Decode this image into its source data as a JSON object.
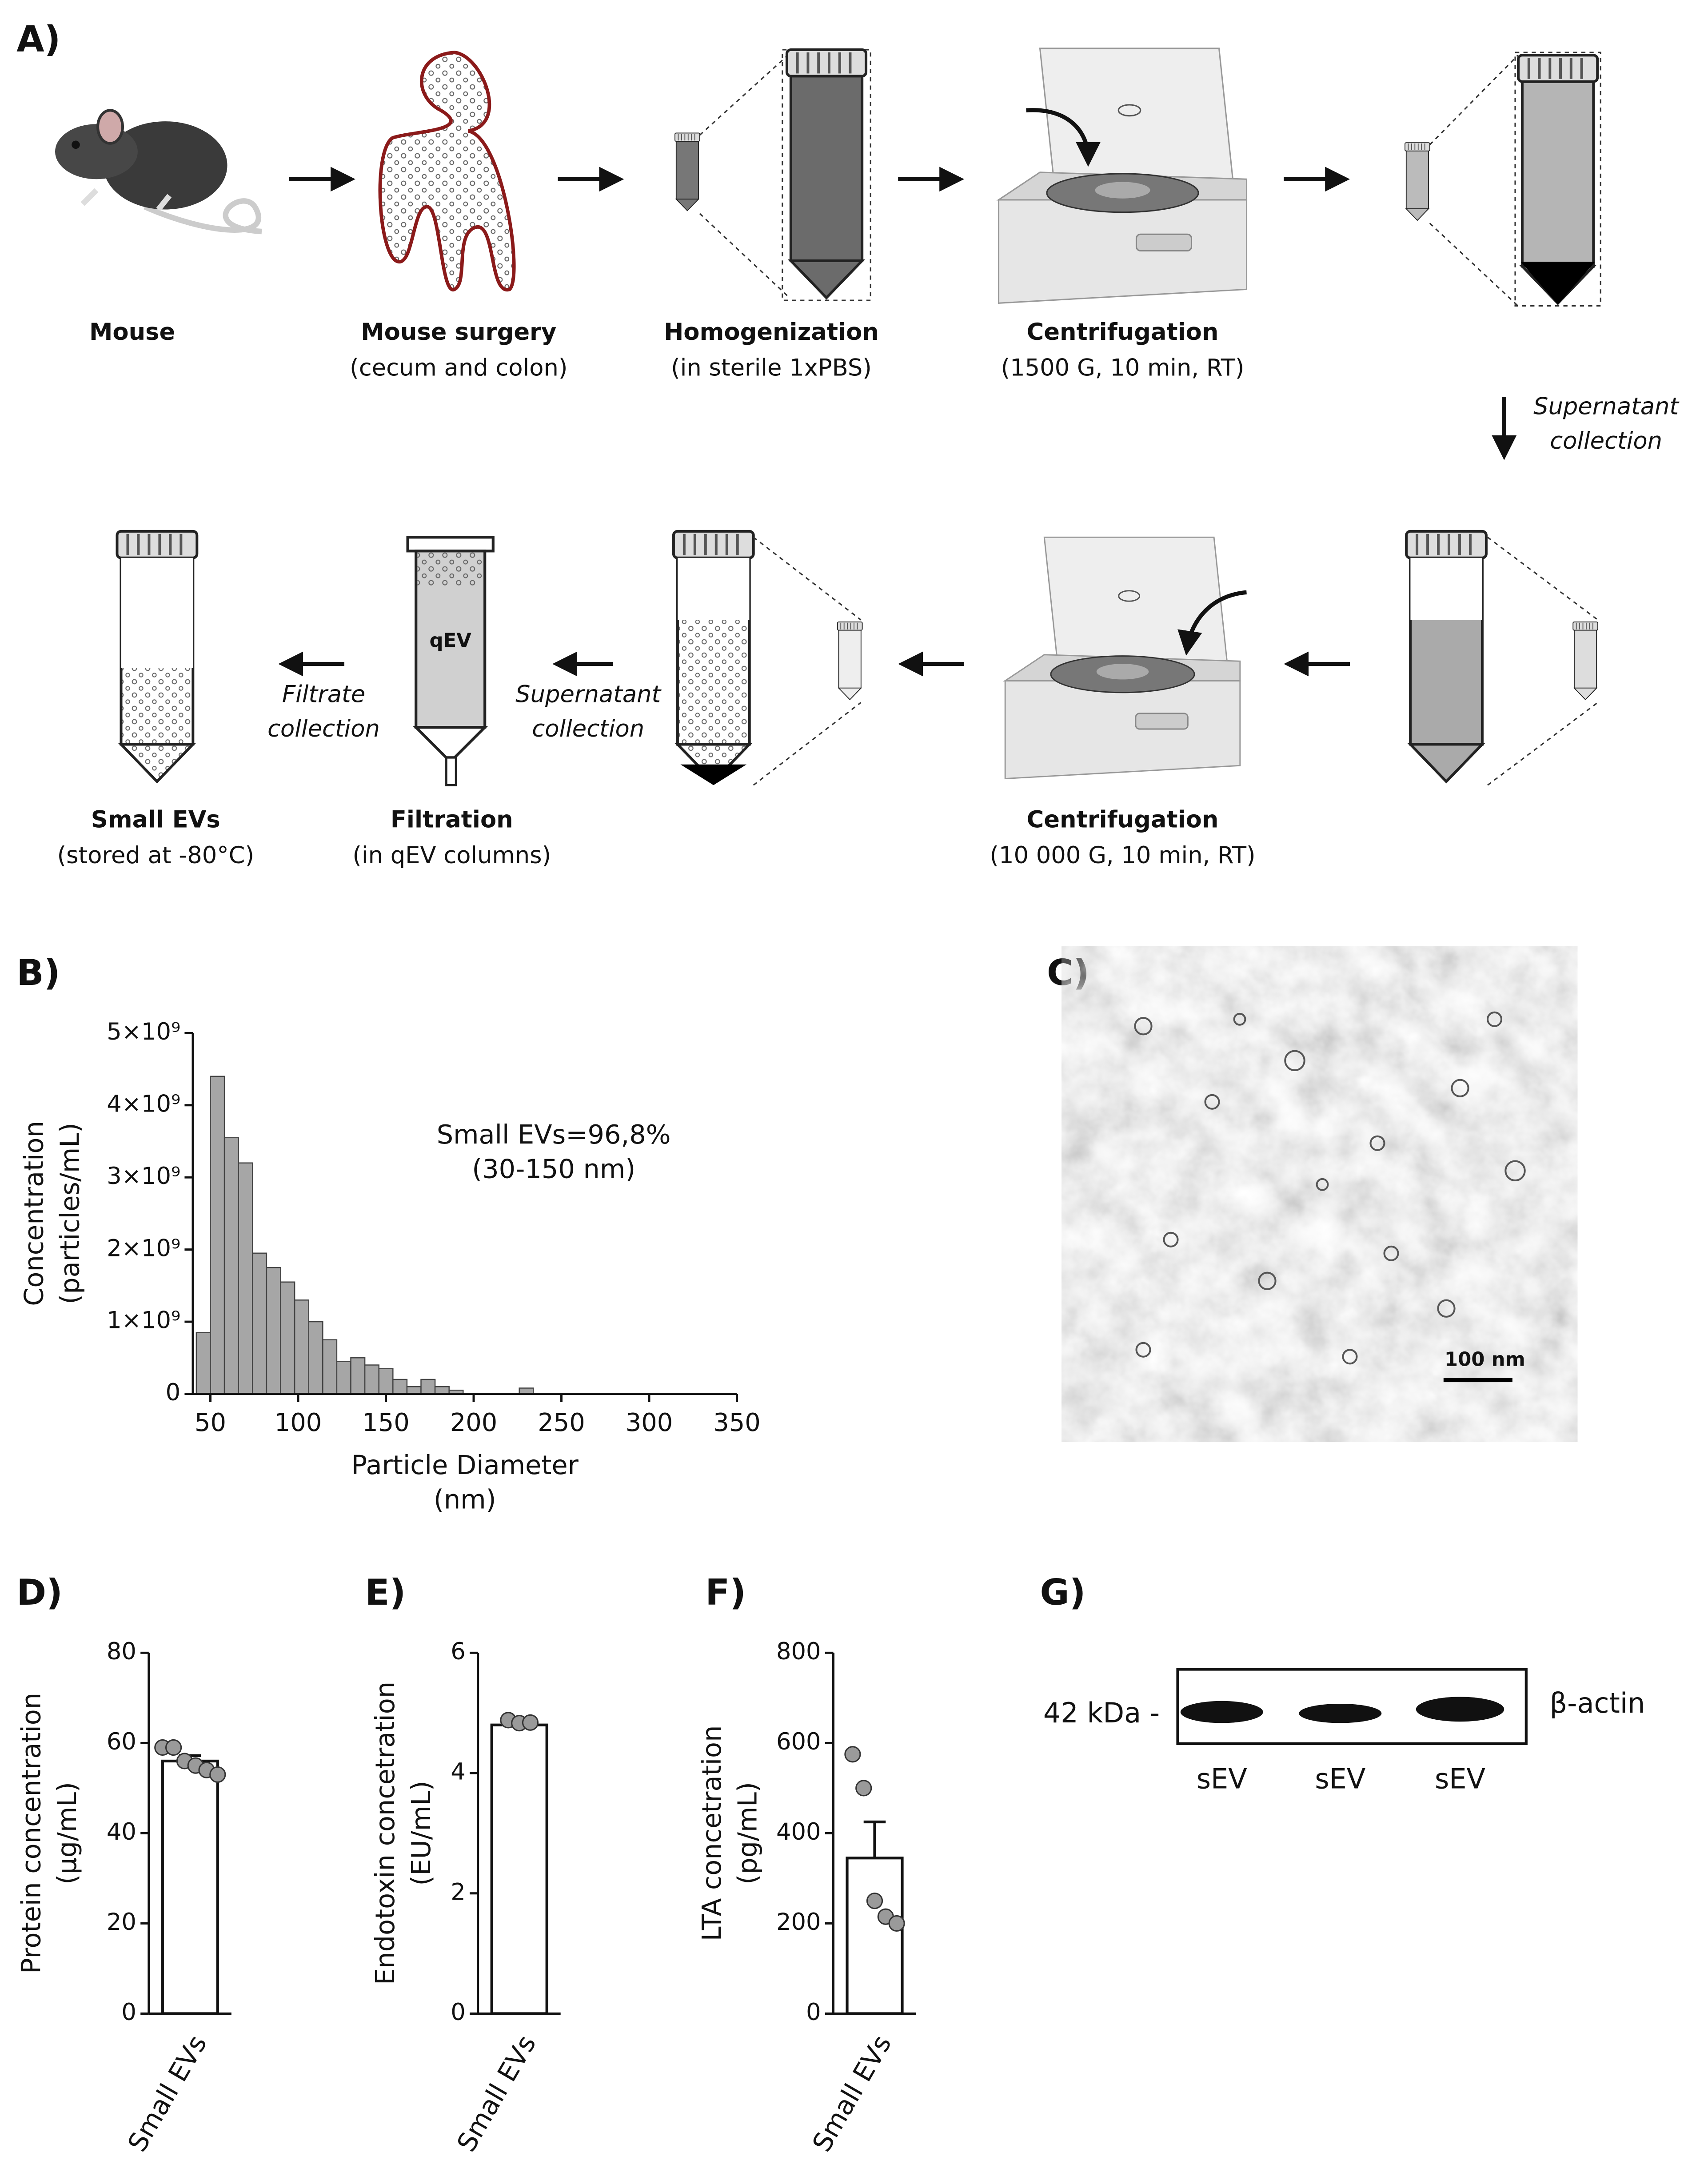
{
  "panel_labels": [
    "A)",
    "B)",
    "C)",
    "D)",
    "E)",
    "F)",
    "G)"
  ],
  "workflow": {
    "steps": [
      {
        "title": "Mouse"
      },
      {
        "title": "Mouse surgery",
        "detail": "(cecum and colon)"
      },
      {
        "title": "Homogenization",
        "detail": "(in sterile 1xPBS)"
      },
      {
        "title": "Centrifugation",
        "detail": "(1500 G, 10 min, RT)"
      },
      {
        "title": "Centrifugation",
        "detail": "(10 000 G, 10 min, RT)"
      },
      {
        "title": "Filtration",
        "detail": "(in qEV columns)"
      },
      {
        "title": "Small EVs",
        "detail": "(stored at -80°C)"
      }
    ],
    "notes": [
      [
        "Supernatant",
        "collection"
      ],
      [
        "Supernatant",
        "collection"
      ],
      [
        "Filtrate",
        "collection"
      ]
    ],
    "column_label": "qEV"
  },
  "chart_data": [
    {
      "type": "histogram",
      "bins": [
        42,
        50,
        58,
        66,
        74,
        82,
        90,
        98,
        106,
        114,
        122,
        130,
        138,
        146,
        154,
        162,
        170,
        178,
        186,
        194,
        202,
        210,
        218,
        226,
        234,
        242
      ],
      "values": [
        850000000,
        4400000000,
        3550000000,
        3200000000,
        1950000000,
        1750000000,
        1550000000,
        1300000000,
        1000000000,
        750000000,
        450000000,
        500000000,
        400000000,
        350000000,
        200000000,
        100000000,
        200000000,
        100000000,
        50000000,
        0,
        0,
        0,
        0,
        80000000,
        0
      ],
      "color": "#a6a6a6",
      "xlim": [
        40,
        350
      ],
      "xticks": [
        50,
        100,
        150,
        200,
        250,
        300,
        350
      ],
      "ylim": [
        0,
        5000000000
      ],
      "yticks": [
        0,
        {
          "value": 1000000000,
          "label": "1×10⁹"
        },
        {
          "value": 2000000000,
          "label": "2×10⁹"
        },
        {
          "value": 3000000000,
          "label": "3×10⁹"
        },
        {
          "value": 4000000000,
          "label": "4×10⁹"
        },
        {
          "value": 5000000000,
          "label": "5×10⁹"
        }
      ],
      "ylabel": [
        "Concentration",
        "(particles/mL)"
      ],
      "xlabel": [
        "Particle Diameter",
        "(nm)"
      ],
      "annotation": [
        "Small EVs=96,8%",
        "(30-150 nm)"
      ]
    },
    {
      "type": "bar",
      "categories": [
        "Small EVs"
      ],
      "values": [
        56
      ],
      "errors": [
        1.2
      ],
      "points": [
        [
          59,
          59,
          56,
          55,
          54,
          53
        ]
      ],
      "color": "#ffffff",
      "point_color": "#9a9a9a",
      "ylim": [
        0,
        80
      ],
      "yticks": [
        0,
        20,
        40,
        60,
        80
      ],
      "ylabel": [
        "Protein concentration",
        "(µg/mL)"
      ]
    },
    {
      "type": "bar",
      "categories": [
        "Small EVs"
      ],
      "values": [
        4.8
      ],
      "errors": [
        0.05
      ],
      "points": [
        [
          4.88,
          4.83,
          4.84
        ]
      ],
      "color": "#ffffff",
      "point_color": "#9a9a9a",
      "ylim": [
        0,
        6
      ],
      "yticks": [
        0,
        2,
        4,
        6
      ],
      "ylabel": [
        "Endotoxin concetration",
        "(EU/mL)"
      ]
    },
    {
      "type": "bar",
      "categories": [
        "Small EVs"
      ],
      "values": [
        345
      ],
      "errors": [
        80
      ],
      "points": [
        [
          575,
          500,
          250,
          215,
          200
        ]
      ],
      "color": "#ffffff",
      "point_color": "#9a9a9a",
      "ylim": [
        0,
        800
      ],
      "yticks": [
        0,
        200,
        400,
        600,
        800
      ],
      "ylabel": [
        "LTA concetration",
        "(pg/mL)"
      ]
    }
  ],
  "micrograph": {
    "scale_bar": "100 nm"
  },
  "blot": {
    "marker": "42 kDa -",
    "protein": "β-actin",
    "lanes": [
      "sEV",
      "sEV",
      "sEV"
    ]
  }
}
